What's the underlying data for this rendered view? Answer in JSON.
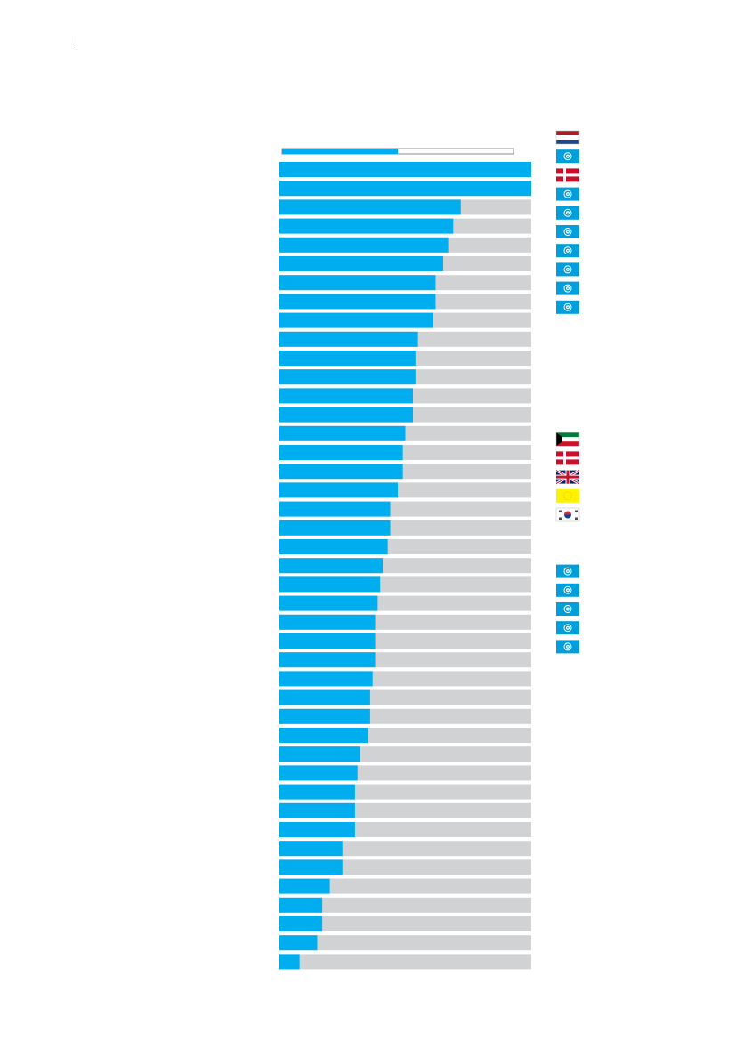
{
  "colors": {
    "bar": "#00aeef",
    "track": "#d1d2d4",
    "overview_border": "#8c8c8c"
  },
  "chart_data": {
    "type": "bar",
    "orientation": "horizontal",
    "ylim": [
      0,
      1
    ],
    "grid": false,
    "overview_value": 0.5,
    "values": [
      1.0,
      1.0,
      0.72,
      0.69,
      0.67,
      0.65,
      0.62,
      0.62,
      0.61,
      0.55,
      0.54,
      0.54,
      0.53,
      0.53,
      0.5,
      0.49,
      0.49,
      0.47,
      0.44,
      0.44,
      0.43,
      0.41,
      0.4,
      0.39,
      0.38,
      0.38,
      0.38,
      0.37,
      0.36,
      0.36,
      0.35,
      0.32,
      0.31,
      0.3,
      0.3,
      0.3,
      0.25,
      0.25,
      0.2,
      0.17,
      0.17,
      0.15,
      0.08
    ]
  },
  "flags": [
    {
      "icon": "netherlands-flag-icon",
      "row": 0
    },
    {
      "icon": "un-flag-icon",
      "row": 1
    },
    {
      "icon": "denmark-flag-icon",
      "row": 2
    },
    {
      "icon": "un-flag-icon",
      "row": 3
    },
    {
      "icon": "un-flag-icon",
      "row": 4
    },
    {
      "icon": "un-flag-icon",
      "row": 5
    },
    {
      "icon": "un-flag-icon",
      "row": 6
    },
    {
      "icon": "un-flag-icon",
      "row": 7
    },
    {
      "icon": "un-flag-icon",
      "row": 8
    },
    {
      "icon": "un-flag-icon",
      "row": 9
    },
    {
      "icon": "kuwait-flag-icon",
      "row": 16
    },
    {
      "icon": "denmark-flag-icon",
      "row": 17
    },
    {
      "icon": "uk-flag-icon",
      "row": 18
    },
    {
      "icon": "eu-flag-icon",
      "row": 19
    },
    {
      "icon": "south-korea-flag-icon",
      "row": 20
    },
    {
      "icon": "un-flag-icon",
      "row": 23
    },
    {
      "icon": "un-flag-icon",
      "row": 24
    },
    {
      "icon": "un-flag-icon",
      "row": 25
    },
    {
      "icon": "un-flag-icon",
      "row": 26
    },
    {
      "icon": "un-flag-icon",
      "row": 27
    }
  ]
}
